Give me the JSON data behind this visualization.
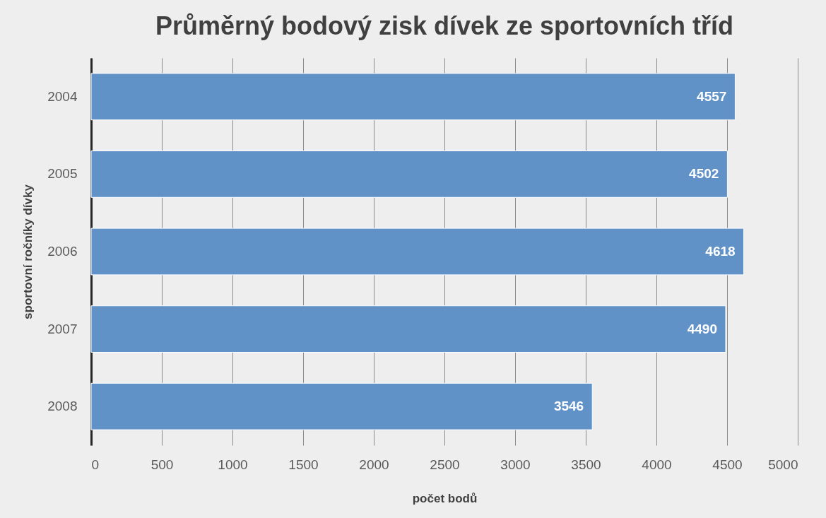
{
  "chart_data": {
    "type": "bar",
    "orientation": "horizontal",
    "title": "Průměrný bodový zisk dívek ze sportovních tříd",
    "xlabel": "počet bodů",
    "ylabel": "sportovní ročníky dívky",
    "categories": [
      "2004",
      "2005",
      "2006",
      "2007",
      "2008"
    ],
    "values": [
      4557,
      4502,
      4618,
      4490,
      3546
    ],
    "color": "#6092c8",
    "xlim": [
      0,
      5000
    ],
    "xticks": [
      0,
      500,
      1000,
      1500,
      2000,
      2500,
      3000,
      3500,
      4000,
      4500,
      5000
    ],
    "grid": "x",
    "data_labels": true
  }
}
